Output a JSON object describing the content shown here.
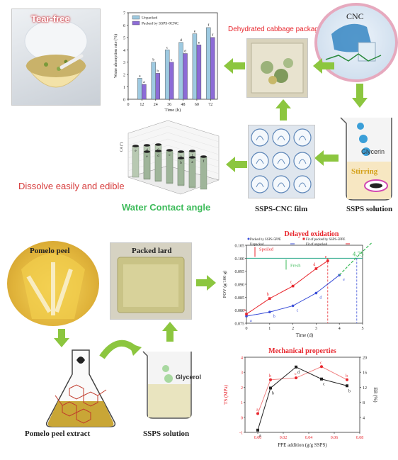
{
  "top": {
    "tearfree_label": "Tear-free",
    "cnc_label": "CNC",
    "dehydrated_label": "Dehydrated cabbage packaging",
    "ssps_cnc_film_label": "SSPS-CNC film",
    "ssps_solution_label": "SSPS solution",
    "glycerin_label": "Glycerin",
    "stirring_label": "Stirring",
    "dissolve_label": "Dissolve easily and edible",
    "wca_label": "Water Contact angle"
  },
  "bottom": {
    "pomelo_peel_label": "Pomelo peel",
    "packed_lard_label": "Packed lard",
    "pomelo_extract_label": "Pomelo peel extract",
    "ssps_solution_label": "SSPS solution",
    "glycerol_label": "Glycerol"
  },
  "colors": {
    "green_arrow": "#8cc63f",
    "red_title": "#e8262d",
    "green_text": "#3dbb5a",
    "bar_unpacked": "#9ecae1",
    "bar_packed": "#8c6bd6"
  },
  "chart_data": [
    {
      "type": "bar",
      "xlabel": "Time (h)",
      "ylabel": "Water absorption rate (%)",
      "categories": [
        "12",
        "24",
        "36",
        "48",
        "60",
        "72"
      ],
      "series": [
        {
          "name": "Unpacked",
          "values": [
            1.7,
            3.0,
            4.0,
            4.6,
            5.3,
            5.8
          ],
          "letters": [
            "a",
            "b",
            "c",
            "d",
            "e",
            "f"
          ]
        },
        {
          "name": "Packed by SSPS-8CNC",
          "values": [
            1.2,
            2.1,
            3.0,
            3.7,
            4.4,
            5.0
          ],
          "letters": [
            "a",
            "b",
            "c",
            "d",
            "e",
            "f"
          ]
        }
      ],
      "ylim": [
        0,
        7
      ],
      "yticks": [
        "0",
        "1",
        "2",
        "3",
        "4",
        "5",
        "6",
        "7"
      ],
      "xticks": [
        "0",
        "12",
        "24",
        "36",
        "48",
        "60",
        "72"
      ]
    },
    {
      "type": "line",
      "title": "Delayed oxidation",
      "xlabel": "Time (d)",
      "ylabel": "POV (g/100 g)",
      "xlim": [
        0,
        5
      ],
      "ylim": [
        0.075,
        0.105
      ],
      "xticks": [
        "0",
        "1",
        "2",
        "3",
        "4",
        "5"
      ],
      "yticks": [
        "0.075",
        "0.080",
        "0.085",
        "0.090",
        "0.095",
        "0.100",
        "0.105"
      ],
      "series": [
        {
          "name": "Packed by SSPS-5PPE",
          "x": [
            0,
            1,
            2,
            3,
            4
          ],
          "y": [
            0.0777,
            0.0793,
            0.0817,
            0.0866,
            0.0935
          ],
          "letters": [
            "a",
            "b",
            "c",
            "d",
            "e"
          ]
        },
        {
          "name": "Unpacked",
          "x": [
            0,
            1,
            2,
            3,
            3.5
          ],
          "y": [
            0.0785,
            0.0845,
            0.0893,
            0.096,
            0.099
          ],
          "letters": [
            "a",
            "b",
            "c",
            "d",
            "e"
          ]
        }
      ],
      "fits": [
        {
          "name": "Fit of packed by SSPS-5PPE"
        },
        {
          "name": "Fit of unpacked"
        }
      ],
      "threshold": 0.1,
      "spoiled_label": "Spoiled",
      "fresh_label": "Fresh",
      "crossing_label": "4.75",
      "crossings": [
        3.5,
        4.75
      ]
    },
    {
      "type": "line",
      "title": "Mechanical properties",
      "xlabel": "PPE addition (g/g SSPS)",
      "ylabel": "TS (MPa)",
      "y2label": "EB (%)",
      "xlim": [
        -0.01,
        0.08
      ],
      "ylim": [
        -1,
        4
      ],
      "y2lim": [
        0,
        20
      ],
      "xticks": [
        "0.00",
        "0.02",
        "0.04",
        "0.06",
        "0.08"
      ],
      "yticks": [
        "-1",
        "0",
        "1",
        "2",
        "3",
        "4"
      ],
      "y2ticks": [
        "4",
        "8",
        "12",
        "16",
        "20"
      ],
      "series": [
        {
          "name": "TS",
          "x": [
            0,
            0.01,
            0.03,
            0.05,
            0.07
          ],
          "y": [
            -0.85,
            1.95,
            3.35,
            2.55,
            2.1
          ],
          "letters": [
            "a",
            "b",
            "d",
            "c",
            "b"
          ]
        },
        {
          "name": "EB",
          "x": [
            0,
            0.01,
            0.03,
            0.05,
            0.07
          ],
          "y": [
            5.0,
            14.0,
            14.5,
            17.5,
            14.0
          ],
          "letters": [
            "a",
            "b",
            "c",
            "c",
            "b"
          ]
        }
      ]
    },
    {
      "type": "bar",
      "subtype": "3d-bar",
      "ylabel": "CA (°)",
      "letters": [
        "e",
        "d",
        "c",
        "b",
        "a",
        "f",
        "e",
        "d",
        "c",
        "b",
        "a",
        "f"
      ]
    }
  ]
}
